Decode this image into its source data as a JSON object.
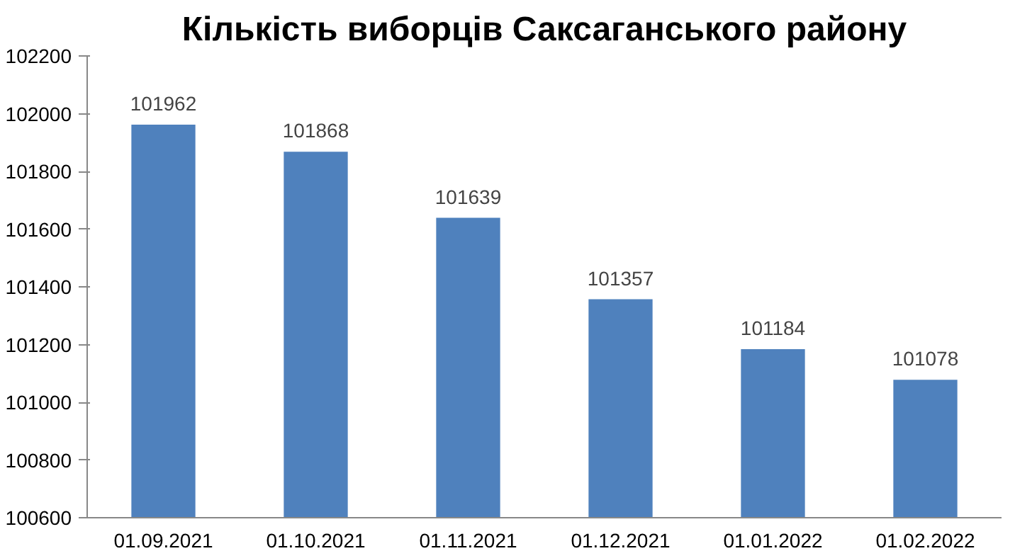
{
  "chart_data": {
    "type": "bar",
    "title": "Кількість виборців Саксаганського району",
    "categories": [
      "01.09.2021",
      "01.10.2021",
      "01.11.2021",
      "01.12.2021",
      "01.01.2022",
      "01.02.2022"
    ],
    "values": [
      101962,
      101868,
      101639,
      101357,
      101184,
      101078
    ],
    "color": "#4f81bd",
    "ylim": [
      100600,
      102200
    ],
    "yticks": [
      100600,
      100800,
      101000,
      101200,
      101400,
      101600,
      101800,
      102000,
      102200
    ],
    "grid": false,
    "data_labels": true
  }
}
